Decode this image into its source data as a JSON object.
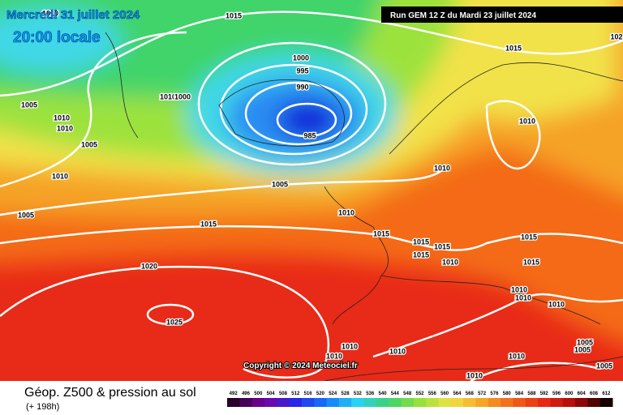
{
  "header": {
    "date": "Mercredi 31 juillet 2024",
    "time": "20:00 locale",
    "run": "Run GEM 12 Z du Mardi 23 juillet 2024"
  },
  "map": {
    "copyright": "Copyright © 2024 Meteociel.fr",
    "isobar_labels": [
      "1010",
      "1015",
      "1015",
      "1000",
      "995",
      "990",
      "1010",
      "1000",
      "985",
      "1005",
      "1010",
      "1010",
      "1005",
      "1010",
      "1010",
      "1005",
      "1010",
      "1005",
      "1010",
      "1015",
      "1015",
      "1015",
      "1015",
      "1015",
      "1015",
      "1010",
      "1015",
      "1020",
      "1010",
      "1010",
      "1010",
      "1025",
      "1010",
      "1010",
      "1010",
      "1005",
      "1005",
      "1010",
      "1005",
      "1010",
      "102"
    ]
  },
  "footer": {
    "title": "Géop. Z500 & pression au sol",
    "subtitle": "(+ 198h)",
    "colorbar_labels": [
      492,
      496,
      500,
      504,
      508,
      512,
      516,
      520,
      524,
      528,
      532,
      536,
      540,
      544,
      548,
      552,
      556,
      560,
      564,
      568,
      572,
      576,
      580,
      584,
      588,
      592,
      596,
      600,
      604,
      608,
      612
    ]
  }
}
